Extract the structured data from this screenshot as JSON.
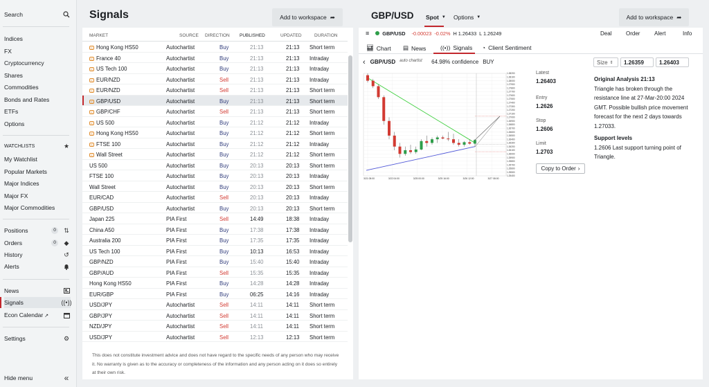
{
  "sidebar": {
    "search": "Search",
    "markets": [
      "Indices",
      "FX",
      "Cryptocurrency",
      "Shares",
      "Commodities",
      "Bonds and Rates",
      "ETFs",
      "Options"
    ],
    "watchlists_head": "WATCHLISTS",
    "watchlists": [
      "My Watchlist",
      "Popular Markets",
      "Major Indices",
      "Major FX",
      "Major Commodities"
    ],
    "positions": "Positions",
    "positions_count": "0",
    "orders": "Orders",
    "orders_count": "0",
    "history": "History",
    "alerts": "Alerts",
    "news": "News",
    "signals": "Signals",
    "econ_calendar": "Econ Calendar",
    "settings": "Settings",
    "hide_menu": "Hide menu"
  },
  "signals_pane": {
    "title": "Signals",
    "add_workspace": "Add to workspace",
    "headers": {
      "market": "MARKET",
      "source": "SOURCE",
      "direction": "DIRECTION",
      "published": "PUBLISHED",
      "updated": "UPDATED",
      "duration": "DURATION"
    },
    "rows": [
      {
        "market": "Hong Kong HS50",
        "source": "Autochartist",
        "direction": "Buy",
        "published": "21:13",
        "updated": "21:13",
        "duration": "Short term",
        "auto": true
      },
      {
        "market": "France 40",
        "source": "Autochartist",
        "direction": "Buy",
        "published": "21:13",
        "updated": "21:13",
        "duration": "Intraday",
        "auto": true
      },
      {
        "market": "US Tech 100",
        "source": "Autochartist",
        "direction": "Buy",
        "published": "21:13",
        "updated": "21:13",
        "duration": "Intraday",
        "auto": true
      },
      {
        "market": "EUR/NZD",
        "source": "Autochartist",
        "direction": "Sell",
        "published": "21:13",
        "updated": "21:13",
        "duration": "Intraday",
        "auto": true
      },
      {
        "market": "EUR/NZD",
        "source": "Autochartist",
        "direction": "Sell",
        "published": "21:13",
        "updated": "21:13",
        "duration": "Short term",
        "auto": true
      },
      {
        "market": "GBP/USD",
        "source": "Autochartist",
        "direction": "Buy",
        "published": "21:13",
        "updated": "21:13",
        "duration": "Short term",
        "auto": true,
        "selected": true
      },
      {
        "market": "GBP/CHF",
        "source": "Autochartist",
        "direction": "Sell",
        "published": "21:13",
        "updated": "21:13",
        "duration": "Short term",
        "auto": true
      },
      {
        "market": "US 500",
        "source": "Autochartist",
        "direction": "Buy",
        "published": "21:12",
        "updated": "21:12",
        "duration": "Intraday",
        "auto": true
      },
      {
        "market": "Hong Kong HS50",
        "source": "Autochartist",
        "direction": "Buy",
        "published": "21:12",
        "updated": "21:12",
        "duration": "Short term",
        "auto": true
      },
      {
        "market": "FTSE 100",
        "source": "Autochartist",
        "direction": "Buy",
        "published": "21:12",
        "updated": "21:12",
        "duration": "Intraday",
        "auto": true
      },
      {
        "market": "Wall Street",
        "source": "Autochartist",
        "direction": "Buy",
        "published": "21:12",
        "updated": "21:12",
        "duration": "Short term",
        "auto": true
      },
      {
        "market": "US 500",
        "source": "Autochartist",
        "direction": "Buy",
        "published": "20:13",
        "updated": "20:13",
        "duration": "Short term",
        "auto": false
      },
      {
        "market": "FTSE 100",
        "source": "Autochartist",
        "direction": "Buy",
        "published": "20:13",
        "updated": "20:13",
        "duration": "Intraday",
        "auto": false
      },
      {
        "market": "Wall Street",
        "source": "Autochartist",
        "direction": "Buy",
        "published": "20:13",
        "updated": "20:13",
        "duration": "Short term",
        "auto": false
      },
      {
        "market": "EUR/CAD",
        "source": "Autochartist",
        "direction": "Sell",
        "published": "20:13",
        "updated": "20:13",
        "duration": "Intraday",
        "auto": false
      },
      {
        "market": "GBP/USD",
        "source": "Autochartist",
        "direction": "Buy",
        "published": "20:13",
        "updated": "20:13",
        "duration": "Short term",
        "auto": false
      },
      {
        "market": "Japan 225",
        "source": "PIA First",
        "direction": "Sell",
        "published": "14:49",
        "updated": "18:38",
        "duration": "Intraday",
        "auto": false,
        "pubdark": true
      },
      {
        "market": "China A50",
        "source": "PIA First",
        "direction": "Buy",
        "published": "17:38",
        "updated": "17:38",
        "duration": "Intraday",
        "auto": false
      },
      {
        "market": "Australia 200",
        "source": "PIA First",
        "direction": "Buy",
        "published": "17:35",
        "updated": "17:35",
        "duration": "Intraday",
        "auto": false
      },
      {
        "market": "US Tech 100",
        "source": "PIA First",
        "direction": "Buy",
        "published": "10:13",
        "updated": "16:53",
        "duration": "Intraday",
        "auto": false,
        "pubdark": true
      },
      {
        "market": "GBP/NZD",
        "source": "PIA First",
        "direction": "Buy",
        "published": "15:40",
        "updated": "15:40",
        "duration": "Intraday",
        "auto": false
      },
      {
        "market": "GBP/AUD",
        "source": "PIA First",
        "direction": "Sell",
        "published": "15:35",
        "updated": "15:35",
        "duration": "Intraday",
        "auto": false
      },
      {
        "market": "Hong Kong HS50",
        "source": "PIA First",
        "direction": "Buy",
        "published": "14:28",
        "updated": "14:28",
        "duration": "Intraday",
        "auto": false
      },
      {
        "market": "EUR/GBP",
        "source": "PIA First",
        "direction": "Buy",
        "published": "06:25",
        "updated": "14:16",
        "duration": "Intraday",
        "auto": false,
        "pubdark": true
      },
      {
        "market": "USD/JPY",
        "source": "Autochartist",
        "direction": "Sell",
        "published": "14:11",
        "updated": "14:11",
        "duration": "Short term",
        "auto": false
      },
      {
        "market": "GBP/JPY",
        "source": "Autochartist",
        "direction": "Sell",
        "published": "14:11",
        "updated": "14:11",
        "duration": "Short term",
        "auto": false
      },
      {
        "market": "NZD/JPY",
        "source": "Autochartist",
        "direction": "Sell",
        "published": "14:11",
        "updated": "14:11",
        "duration": "Short term",
        "auto": false
      },
      {
        "market": "USD/JPY",
        "source": "Autochartist",
        "direction": "Sell",
        "published": "12:13",
        "updated": "12:13",
        "duration": "Short term",
        "auto": false
      }
    ],
    "disclaimer": "This does not constitute investment advice and does not have regard to the specific needs of any person who may receive it. No warranty is given as to the accuracy or completeness of the information and any person acting on it does so entirely at their own risk."
  },
  "detail": {
    "instrument": "GBP/USD",
    "spot": "Spot",
    "options": "Options",
    "add_workspace": "Add to workspace",
    "quote": {
      "name": "GBP/USD",
      "change": "-0.00023",
      "change_pct": "-0.02%",
      "high": "H 1.26433",
      "low": "L 1.26249"
    },
    "actions": [
      "Deal",
      "Order",
      "Alert",
      "Info"
    ],
    "tabs": [
      "Chart",
      "News",
      "Signals",
      "Client Sentiment"
    ],
    "signal": {
      "instrument": "GBP/USD",
      "brand": "auto chartist",
      "confidence": "64.98% confidence",
      "direction": "BUY",
      "size_label": "Size",
      "bid": "1.26359",
      "ask": "1.26403"
    },
    "levels": [
      {
        "label": "Latest",
        "value": "1.26403"
      },
      {
        "label": "Entry",
        "value": "1.2626"
      },
      {
        "label": "Stop",
        "value": "1.2606"
      },
      {
        "label": "Limit",
        "value": "1.2703"
      }
    ],
    "copy_to_order": "Copy to Order",
    "analysis_title": "Original Analysis 21:13",
    "analysis_text": "Triangle has broken through the resistance line at 27-Mar-20:00 2024 GMT. Possible bullish price movement forecast for the next 2 days towards 1.27033.",
    "support_title": "Support levels",
    "support_text": "1.2606 Last support turning point of Triangle."
  },
  "chart_data": {
    "type": "candlestick",
    "x": [
      "3/21 08:00",
      "3/22 04:00",
      "3/25 00:00",
      "3/25 16:00",
      "3/26 12:00",
      "3/27 08:00"
    ],
    "y_ticks": [
      "1.28200",
      "1.28100",
      "1.28000",
      "1.27900",
      "1.27800",
      "1.27700",
      "1.27600",
      "1.27500",
      "1.27400",
      "1.27300",
      "1.27200",
      "1.27100",
      "1.27000",
      "1.26900",
      "1.26800",
      "1.26700",
      "1.26600",
      "1.26500",
      "1.26400",
      "1.26300",
      "1.26200",
      "1.26100",
      "1.26000",
      "1.25900",
      "1.25800",
      "1.25700",
      "1.25600",
      "1.25500",
      "1.25400"
    ],
    "ylim": [
      1.254,
      1.282
    ],
    "candles": [
      {
        "o": 1.2815,
        "h": 1.282,
        "l": 1.2795,
        "c": 1.28
      },
      {
        "o": 1.28,
        "h": 1.2805,
        "l": 1.278,
        "c": 1.2785
      },
      {
        "o": 1.2785,
        "h": 1.279,
        "l": 1.275,
        "c": 1.2755
      },
      {
        "o": 1.2755,
        "h": 1.276,
        "l": 1.268,
        "c": 1.269
      },
      {
        "o": 1.269,
        "h": 1.27,
        "l": 1.264,
        "c": 1.265
      },
      {
        "o": 1.265,
        "h": 1.266,
        "l": 1.261,
        "c": 1.262
      },
      {
        "o": 1.262,
        "h": 1.263,
        "l": 1.259,
        "c": 1.26
      },
      {
        "o": 1.26,
        "h": 1.262,
        "l": 1.2595,
        "c": 1.261
      },
      {
        "o": 1.261,
        "h": 1.2625,
        "l": 1.26,
        "c": 1.2605
      },
      {
        "o": 1.2605,
        "h": 1.262,
        "l": 1.26,
        "c": 1.2612
      },
      {
        "o": 1.2612,
        "h": 1.264,
        "l": 1.261,
        "c": 1.2635
      },
      {
        "o": 1.2635,
        "h": 1.265,
        "l": 1.262,
        "c": 1.263
      },
      {
        "o": 1.263,
        "h": 1.2645,
        "l": 1.2625,
        "c": 1.264
      },
      {
        "o": 1.264,
        "h": 1.265,
        "l": 1.263,
        "c": 1.2645
      },
      {
        "o": 1.2645,
        "h": 1.265,
        "l": 1.264,
        "c": 1.2642
      },
      {
        "o": 1.2642,
        "h": 1.266,
        "l": 1.2635,
        "c": 1.264
      },
      {
        "o": 1.264,
        "h": 1.2655,
        "l": 1.2625,
        "c": 1.263
      },
      {
        "o": 1.263,
        "h": 1.264,
        "l": 1.262,
        "c": 1.2625
      },
      {
        "o": 1.2625,
        "h": 1.2635,
        "l": 1.262,
        "c": 1.2632
      },
      {
        "o": 1.2632,
        "h": 1.264,
        "l": 1.2625,
        "c": 1.2628
      },
      {
        "o": 1.2628,
        "h": 1.264,
        "l": 1.262,
        "c": 1.2638
      }
    ],
    "resistance": {
      "from": 1.281,
      "to": 1.263
    },
    "support": {
      "from": 1.2555,
      "to": 1.262
    },
    "forecast": {
      "from": 1.2638,
      "to": 1.2703
    },
    "colors": {
      "up": "#2e9e4a",
      "down": "#d23a32",
      "resistance": "#3fcf3f",
      "support": "#5058d8"
    }
  }
}
